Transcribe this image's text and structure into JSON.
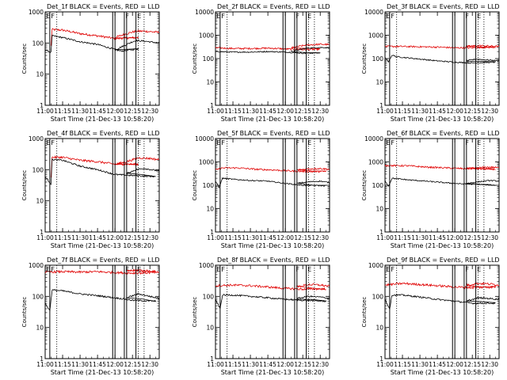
{
  "chart_data": {
    "type": "line",
    "layout": "3x3 grid of panels",
    "y_scale": "log",
    "ylim": [
      1,
      1000
    ],
    "y_ticks": [
      "1",
      "10",
      "100",
      "1000"
    ],
    "y_ticks_alt": [
      "1",
      "10",
      "100",
      "1000",
      "10000"
    ],
    "x_range": [
      "11:00",
      "12:38"
    ],
    "x_ticks": [
      "11:00",
      "11:15",
      "11:30",
      "11:45",
      "12:00",
      "12:15",
      "12:30"
    ],
    "xlabel": "Start Time (21-Dec-13 10:58:20)",
    "ylabel": "Counts/sec",
    "series_colors": {
      "events": "#000000",
      "lld": "#e00000"
    },
    "markers": {
      "solid_lines": [
        "11:04",
        "11:58",
        "12:00",
        "12:08",
        "12:10",
        "12:18"
      ],
      "dotted_lines": [
        "11:10",
        "12:20",
        "12:25"
      ],
      "flags": [
        {
          "time": "11:00",
          "text": "E"
        },
        {
          "time": "11:04",
          "text": "F"
        },
        {
          "time": "12:08",
          "text": "F"
        },
        {
          "time": "12:18",
          "text": "E"
        }
      ]
    },
    "panels": [
      {
        "title": "Det_1f BLACK = Events, RED = LLD",
        "ymax_label": "1000",
        "events": [
          [
            11.0,
            60
          ],
          [
            11.05,
            50
          ],
          [
            11.06,
            170
          ],
          [
            11.15,
            150
          ],
          [
            11.3,
            110
          ],
          [
            11.45,
            90
          ],
          [
            11.55,
            70
          ],
          [
            11.65,
            55
          ],
          [
            11.8,
            65
          ],
          [
            12.0,
            60
          ],
          [
            12.1,
            90
          ],
          [
            12.15,
            110
          ],
          [
            12.18,
            120
          ],
          [
            12.25,
            115
          ],
          [
            12.38,
            100
          ]
        ],
        "lld": [
          [
            11.05,
            80
          ],
          [
            11.06,
            270
          ],
          [
            11.15,
            260
          ],
          [
            11.3,
            200
          ],
          [
            11.45,
            170
          ],
          [
            11.6,
            140
          ],
          [
            11.8,
            150
          ],
          [
            12.0,
            150
          ],
          [
            12.1,
            200
          ],
          [
            12.18,
            240
          ],
          [
            12.25,
            240
          ],
          [
            12.38,
            220
          ]
        ]
      },
      {
        "title": "Det_2f BLACK = Events, RED = LLD",
        "ymax_label": "10000",
        "events": [
          [
            11.0,
            200
          ],
          [
            11.15,
            190
          ],
          [
            11.3,
            190
          ],
          [
            11.45,
            200
          ],
          [
            11.6,
            190
          ],
          [
            11.75,
            170
          ],
          [
            11.9,
            175
          ],
          [
            12.05,
            200
          ],
          [
            12.18,
            280
          ],
          [
            12.3,
            300
          ],
          [
            12.38,
            290
          ]
        ],
        "lld": [
          [
            11.0,
            290
          ],
          [
            11.15,
            270
          ],
          [
            11.3,
            270
          ],
          [
            11.45,
            280
          ],
          [
            11.6,
            260
          ],
          [
            11.75,
            240
          ],
          [
            11.9,
            250
          ],
          [
            12.05,
            290
          ],
          [
            12.18,
            380
          ],
          [
            12.3,
            410
          ],
          [
            12.38,
            400
          ]
        ]
      },
      {
        "title": "Det_3f BLACK = Events, RED = LLD",
        "ymax_label": "10000",
        "events": [
          [
            11.0,
            110
          ],
          [
            11.03,
            75
          ],
          [
            11.06,
            140
          ],
          [
            11.1,
            120
          ],
          [
            11.3,
            95
          ],
          [
            11.45,
            80
          ],
          [
            11.6,
            70
          ],
          [
            11.75,
            65
          ],
          [
            11.95,
            70
          ],
          [
            12.1,
            80
          ],
          [
            12.18,
            95
          ],
          [
            12.25,
            90
          ],
          [
            12.38,
            80
          ]
        ],
        "lld": [
          [
            11.0,
            330
          ],
          [
            11.15,
            330
          ],
          [
            11.3,
            320
          ],
          [
            11.45,
            310
          ],
          [
            11.6,
            290
          ],
          [
            11.75,
            290
          ],
          [
            11.95,
            310
          ],
          [
            12.1,
            330
          ],
          [
            12.2,
            360
          ],
          [
            12.38,
            330
          ]
        ]
      },
      {
        "title": "Det_4f BLACK = Events, RED = LLD",
        "ymax_label": "1000",
        "events": [
          [
            11.0,
            60
          ],
          [
            11.05,
            35
          ],
          [
            11.06,
            210
          ],
          [
            11.15,
            200
          ],
          [
            11.3,
            130
          ],
          [
            11.45,
            100
          ],
          [
            11.6,
            70
          ],
          [
            11.75,
            65
          ],
          [
            11.95,
            60
          ],
          [
            12.1,
            75
          ],
          [
            12.18,
            100
          ],
          [
            12.25,
            110
          ],
          [
            12.38,
            90
          ]
        ],
        "lld": [
          [
            11.05,
            60
          ],
          [
            11.06,
            250
          ],
          [
            11.15,
            250
          ],
          [
            11.3,
            200
          ],
          [
            11.45,
            180
          ],
          [
            11.6,
            150
          ],
          [
            11.8,
            150
          ],
          [
            12.0,
            150
          ],
          [
            12.1,
            180
          ],
          [
            12.2,
            240
          ],
          [
            12.3,
            230
          ],
          [
            12.38,
            210
          ]
        ]
      },
      {
        "title": "Det_5f BLACK = Events, RED = LLD",
        "ymax_label": "10000",
        "events": [
          [
            11.0,
            150
          ],
          [
            11.03,
            80
          ],
          [
            11.06,
            200
          ],
          [
            11.15,
            180
          ],
          [
            11.3,
            160
          ],
          [
            11.45,
            150
          ],
          [
            11.6,
            120
          ],
          [
            11.75,
            100
          ],
          [
            11.95,
            95
          ],
          [
            12.1,
            120
          ],
          [
            12.2,
            140
          ],
          [
            12.3,
            150
          ],
          [
            12.38,
            130
          ]
        ],
        "lld": [
          [
            11.0,
            450
          ],
          [
            11.06,
            550
          ],
          [
            11.2,
            550
          ],
          [
            11.35,
            480
          ],
          [
            11.5,
            450
          ],
          [
            11.65,
            410
          ],
          [
            11.8,
            380
          ],
          [
            11.95,
            390
          ],
          [
            12.1,
            450
          ],
          [
            12.2,
            500
          ],
          [
            12.3,
            520
          ],
          [
            12.38,
            480
          ]
        ]
      },
      {
        "title": "Det_6f BLACK = Events, RED = LLD",
        "ymax_label": "10000",
        "events": [
          [
            11.0,
            160
          ],
          [
            11.03,
            90
          ],
          [
            11.06,
            200
          ],
          [
            11.2,
            170
          ],
          [
            11.35,
            150
          ],
          [
            11.5,
            130
          ],
          [
            11.65,
            115
          ],
          [
            11.8,
            110
          ],
          [
            11.95,
            100
          ],
          [
            12.1,
            120
          ],
          [
            12.2,
            140
          ],
          [
            12.3,
            160
          ],
          [
            12.38,
            150
          ]
        ],
        "lld": [
          [
            11.0,
            700
          ],
          [
            11.2,
            680
          ],
          [
            11.35,
            600
          ],
          [
            11.5,
            560
          ],
          [
            11.65,
            520
          ],
          [
            11.8,
            500
          ],
          [
            11.95,
            490
          ],
          [
            12.1,
            520
          ],
          [
            12.2,
            560
          ],
          [
            12.3,
            600
          ],
          [
            12.38,
            560
          ]
        ]
      },
      {
        "title": "Det_7f BLACK = Events, RED = LLD",
        "ymax_label": "1000",
        "events": [
          [
            11.0,
            60
          ],
          [
            11.04,
            35
          ],
          [
            11.06,
            160
          ],
          [
            11.15,
            150
          ],
          [
            11.3,
            120
          ],
          [
            11.45,
            105
          ],
          [
            11.6,
            90
          ],
          [
            11.75,
            75
          ],
          [
            11.95,
            70
          ],
          [
            12.1,
            90
          ],
          [
            12.2,
            120
          ],
          [
            12.3,
            100
          ],
          [
            12.38,
            85
          ]
        ],
        "lld": [
          [
            11.0,
            600
          ],
          [
            11.15,
            620
          ],
          [
            11.3,
            600
          ],
          [
            11.45,
            620
          ],
          [
            11.6,
            580
          ],
          [
            11.75,
            560
          ],
          [
            11.95,
            580
          ],
          [
            12.1,
            650
          ],
          [
            12.2,
            700
          ],
          [
            12.3,
            650
          ],
          [
            12.38,
            600
          ]
        ]
      },
      {
        "title": "Det_8f BLACK = Events, RED = LLD",
        "ymax_label": "1000",
        "events": [
          [
            11.0,
            80
          ],
          [
            11.04,
            40
          ],
          [
            11.06,
            110
          ],
          [
            11.15,
            110
          ],
          [
            11.3,
            100
          ],
          [
            11.45,
            90
          ],
          [
            11.6,
            80
          ],
          [
            11.75,
            75
          ],
          [
            11.95,
            70
          ],
          [
            12.1,
            85
          ],
          [
            12.2,
            100
          ],
          [
            12.3,
            95
          ],
          [
            12.38,
            85
          ]
        ],
        "lld": [
          [
            11.0,
            220
          ],
          [
            11.15,
            230
          ],
          [
            11.3,
            220
          ],
          [
            11.45,
            200
          ],
          [
            11.6,
            180
          ],
          [
            11.75,
            170
          ],
          [
            11.95,
            175
          ],
          [
            12.1,
            200
          ],
          [
            12.2,
            240
          ],
          [
            12.3,
            230
          ],
          [
            12.38,
            210
          ]
        ]
      },
      {
        "title": "Det_9f BLACK = Events, RED = LLD",
        "ymax_label": "1000",
        "events": [
          [
            11.0,
            80
          ],
          [
            11.04,
            40
          ],
          [
            11.06,
            110
          ],
          [
            11.15,
            110
          ],
          [
            11.3,
            95
          ],
          [
            11.45,
            80
          ],
          [
            11.6,
            70
          ],
          [
            11.75,
            60
          ],
          [
            11.95,
            60
          ],
          [
            12.1,
            70
          ],
          [
            12.2,
            90
          ],
          [
            12.3,
            85
          ],
          [
            12.38,
            80
          ]
        ],
        "lld": [
          [
            11.0,
            230
          ],
          [
            11.15,
            260
          ],
          [
            11.3,
            240
          ],
          [
            11.45,
            220
          ],
          [
            11.6,
            200
          ],
          [
            11.75,
            190
          ],
          [
            11.95,
            200
          ],
          [
            12.1,
            230
          ],
          [
            12.2,
            260
          ],
          [
            12.3,
            250
          ],
          [
            12.38,
            230
          ]
        ]
      }
    ]
  }
}
